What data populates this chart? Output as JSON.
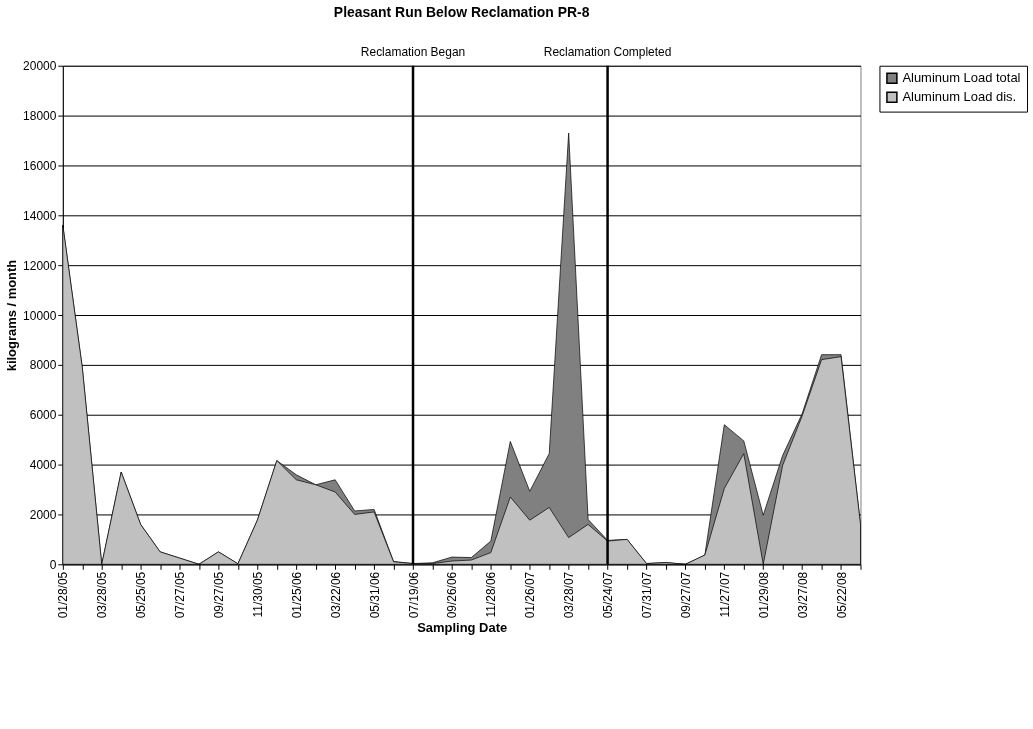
{
  "chart_data": {
    "type": "area",
    "title": "Pleasant Run Below Reclamation PR-8",
    "xlabel": "Sampling Date",
    "ylabel": "kilograms / month",
    "categories": [
      "01/28/05",
      null,
      "03/28/05",
      null,
      "05/25/05",
      null,
      "07/27/05",
      null,
      "09/27/05",
      null,
      "11/30/05",
      null,
      "01/25/06",
      null,
      "03/22/06",
      null,
      "05/31/06",
      null,
      "07/19/06",
      null,
      "09/26/06",
      null,
      "11/28/06",
      null,
      "01/26/07",
      null,
      "03/28/07",
      null,
      "05/24/07",
      null,
      "07/31/07",
      null,
      "09/27/07",
      null,
      "11/27/07",
      null,
      "01/29/08",
      null,
      "03/27/08",
      null,
      "05/22/08",
      null
    ],
    "series": [
      {
        "name": "Aluminum Load total",
        "color": "#808080",
        "values": [
          13600,
          7900,
          0,
          3700,
          1600,
          500,
          250,
          0,
          500,
          20,
          1770,
          4160,
          3590,
          3190,
          3390,
          2140,
          2200,
          110,
          30,
          60,
          290,
          270,
          930,
          4930,
          2930,
          4440,
          17300,
          1800,
          960,
          1000,
          30,
          70,
          0,
          370,
          5600,
          4950,
          1970,
          4370,
          6040,
          8410,
          8410,
          1600
        ]
      },
      {
        "name": "Aluminum Load dis.",
        "color": "#c0c0c0",
        "values": [
          13600,
          7900,
          0,
          3700,
          1600,
          500,
          250,
          0,
          500,
          20,
          1770,
          4160,
          3390,
          3190,
          2900,
          2000,
          2100,
          100,
          30,
          30,
          130,
          170,
          470,
          2700,
          1770,
          2280,
          1070,
          1600,
          930,
          1000,
          30,
          70,
          0,
          370,
          3040,
          4440,
          0,
          3970,
          5950,
          8210,
          8330,
          1600
        ]
      }
    ],
    "ylim": [
      0,
      20000
    ],
    "yticks": [
      0,
      2000,
      4000,
      6000,
      8000,
      10000,
      12000,
      14000,
      16000,
      18000,
      20000
    ],
    "grid": "y",
    "legend": "right",
    "ref_lines": [
      {
        "axis": "x",
        "value": "07/19/06",
        "label": "Reclamation Began",
        "color": "#000000"
      },
      {
        "axis": "x",
        "value": "05/24/07",
        "label": "Reclamation Completed",
        "color": "#000000"
      }
    ]
  }
}
